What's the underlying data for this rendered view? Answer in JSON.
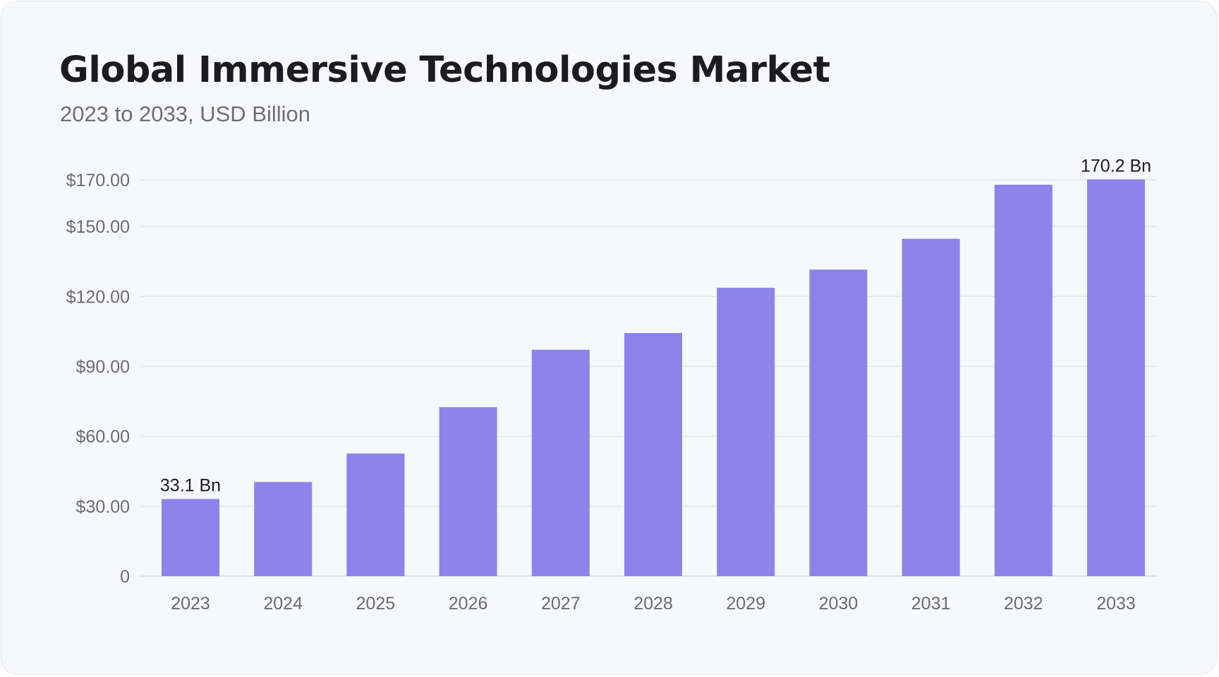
{
  "chart_data": {
    "type": "bar",
    "title": "Global Immersive Technologies Market",
    "subtitle": "2023 to 2033, USD Billion",
    "categories": [
      "2023",
      "2024",
      "2025",
      "2026",
      "2027",
      "2028",
      "2029",
      "2030",
      "2031",
      "2032",
      "2033"
    ],
    "values": [
      33.1,
      40.4,
      52.6,
      72.5,
      97.1,
      104.3,
      123.7,
      131.5,
      144.7,
      167.9,
      170.2
    ],
    "yticks": [
      0,
      30,
      60,
      90,
      120,
      150,
      170
    ],
    "ytick_labels": [
      "0",
      "$30.00",
      "$60.00",
      "$90.00",
      "$120.00",
      "$150.00",
      "$170.00"
    ],
    "ylim": [
      0,
      170
    ],
    "data_labels": [
      {
        "index": 0,
        "text": "33.1 Bn"
      },
      {
        "index": 10,
        "text": "170.2 Bn"
      }
    ],
    "bar_color": "#8c84ea",
    "grid": true,
    "xlabel": "",
    "ylabel": ""
  }
}
